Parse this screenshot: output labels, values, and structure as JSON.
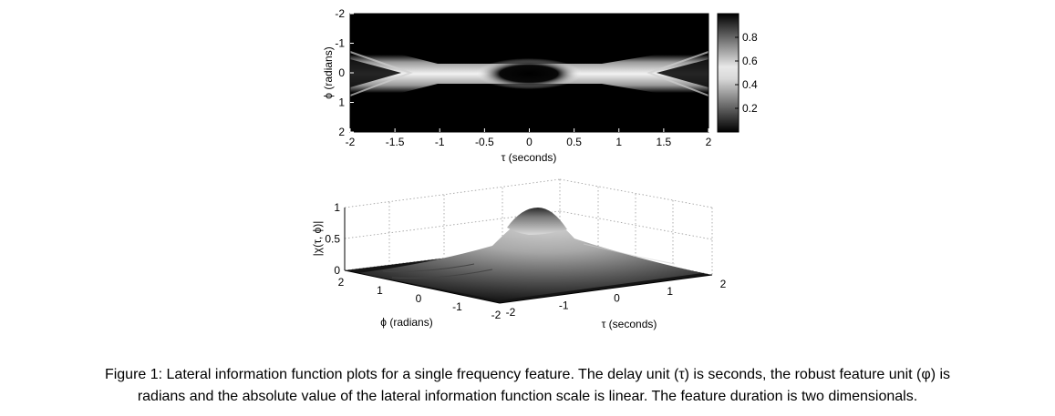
{
  "chart_data": [
    {
      "type": "heatmap",
      "xlabel": "τ (seconds)",
      "ylabel": "ϕ (radians)",
      "xlim": [
        -2,
        2
      ],
      "ylim": [
        -2,
        2
      ],
      "y_axis_reversed": true,
      "x_ticks": [
        "-2",
        "-1.5",
        "-1",
        "-0.5",
        "0",
        "0.5",
        "1",
        "1.5",
        "2"
      ],
      "y_ticks": [
        "-2",
        "-1",
        "0",
        "1",
        "2"
      ],
      "colorbar": {
        "range": [
          0,
          1
        ],
        "ticks": [
          "0.8",
          "0.6",
          "0.4",
          "0.2"
        ],
        "colormap": "gray"
      }
    },
    {
      "type": "surface",
      "xlabel": "τ (seconds)",
      "ylabel": "ϕ (radians)",
      "zlabel": "|χ(τ, ϕ)|",
      "xlim": [
        -2,
        2
      ],
      "ylim": [
        -2,
        2
      ],
      "zlim": [
        0,
        1
      ],
      "x_ticks": [
        "-2",
        "-1",
        "0",
        "1",
        "2"
      ],
      "y_ticks": [
        "2",
        "1",
        "0",
        "-1",
        "-2"
      ],
      "z_ticks": [
        "0",
        "0.5",
        "1"
      ],
      "peak": {
        "x": 0,
        "y": 0,
        "z": 1
      },
      "grid": true
    }
  ],
  "caption": {
    "line1": "Figure 1: Lateral information function plots for a single frequency feature. The delay unit (τ) is seconds, the robust feature unit (φ) is",
    "line2": "radians and the absolute value of the lateral information function scale is linear. The feature duration is two dimensionals."
  }
}
